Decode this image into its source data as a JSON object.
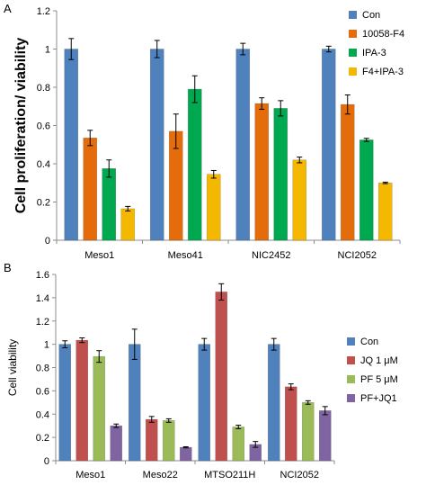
{
  "chart_data": [
    {
      "panel": "A",
      "type": "bar",
      "title": "",
      "xlabel": "",
      "ylabel": "Cell proliferation/ viability",
      "ylim": [
        0,
        1.2
      ],
      "yticks": [
        "0",
        "0.2",
        "0.4",
        "0.6",
        "0.8",
        "1",
        "1.2"
      ],
      "categories": [
        "Meso1",
        "Meso41",
        "NIC2452",
        "NCI2052"
      ],
      "legend_position": "right",
      "grid": false,
      "series": [
        {
          "name": "Con",
          "color": "#4F81BD",
          "values": [
            1.0,
            1.0,
            1.0,
            1.0
          ],
          "errors": [
            0.055,
            0.045,
            0.03,
            0.015
          ]
        },
        {
          "name": "10058-F4",
          "color": "#E46C0A",
          "values": [
            0.535,
            0.57,
            0.715,
            0.71
          ],
          "errors": [
            0.04,
            0.09,
            0.03,
            0.05
          ]
        },
        {
          "name": "IPA-3",
          "color": "#00A850",
          "values": [
            0.375,
            0.79,
            0.69,
            0.525
          ],
          "errors": [
            0.045,
            0.07,
            0.04,
            0.008
          ]
        },
        {
          "name": "F4+IPA-3",
          "color": "#F5B800",
          "values": [
            0.165,
            0.345,
            0.42,
            0.3
          ],
          "errors": [
            0.012,
            0.02,
            0.015,
            0.004
          ]
        }
      ]
    },
    {
      "panel": "B",
      "type": "bar",
      "title": "",
      "xlabel": "",
      "ylabel": "Cell viability",
      "ylim": [
        0,
        1.6
      ],
      "yticks": [
        "0",
        "0.2",
        "0.4",
        "0.6",
        "0.8",
        "1",
        "1.2",
        "1.4",
        "1.6"
      ],
      "categories": [
        "Meso1",
        "Meso22",
        "MTSO211H",
        "NCI2052"
      ],
      "legend_position": "right",
      "grid": false,
      "series": [
        {
          "name": "Con",
          "color": "#4F81BD",
          "values": [
            1.0,
            1.0,
            1.0,
            1.0
          ],
          "errors": [
            0.03,
            0.13,
            0.05,
            0.05
          ]
        },
        {
          "name": "JQ 1 μM",
          "color": "#C0504D",
          "values": [
            1.035,
            0.355,
            1.45,
            0.635
          ],
          "errors": [
            0.02,
            0.025,
            0.07,
            0.025
          ]
        },
        {
          "name": "PF 5 μM",
          "color": "#9BBB59",
          "values": [
            0.895,
            0.345,
            0.29,
            0.5
          ],
          "errors": [
            0.05,
            0.015,
            0.015,
            0.015
          ]
        },
        {
          "name": "PF+JQ1",
          "color": "#8064A2",
          "values": [
            0.3,
            0.115,
            0.14,
            0.43
          ],
          "errors": [
            0.015,
            0.005,
            0.025,
            0.035
          ]
        }
      ]
    }
  ]
}
